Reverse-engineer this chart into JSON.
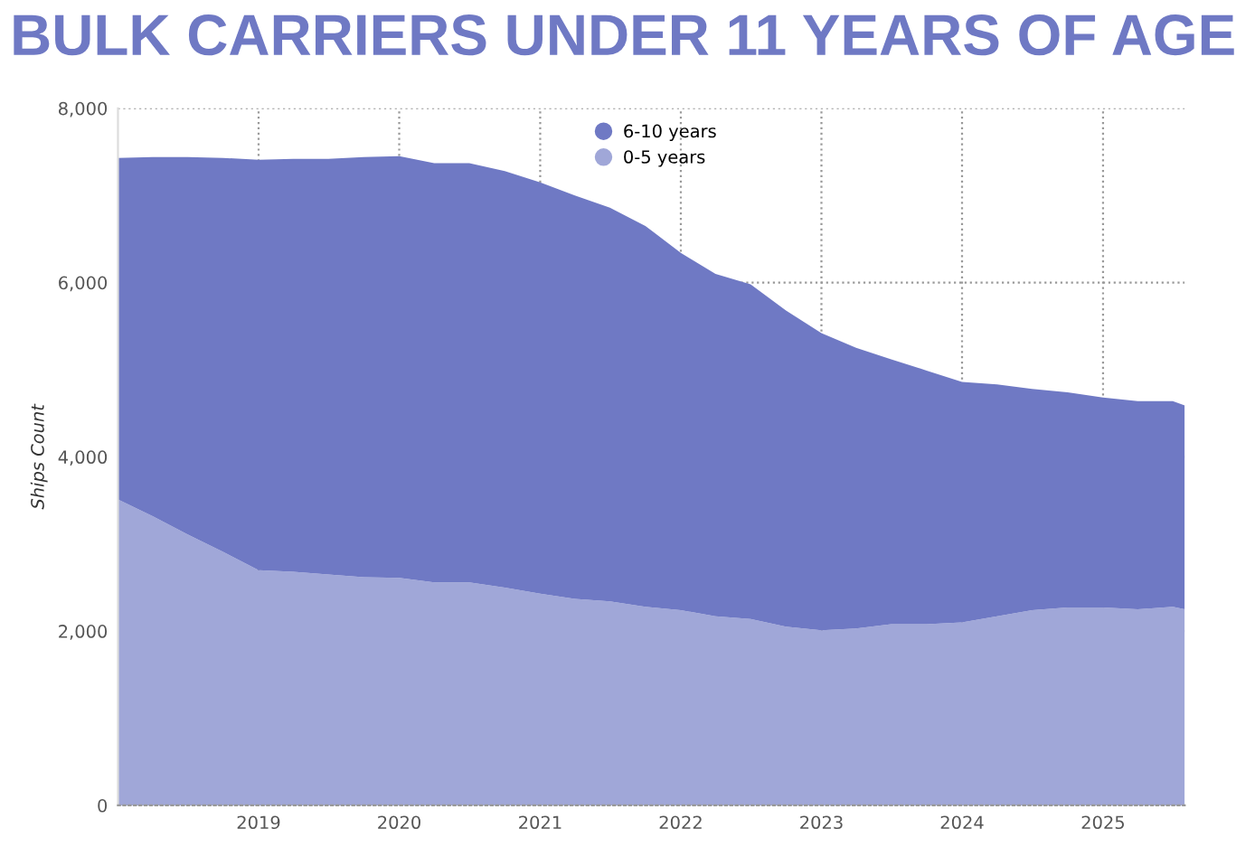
{
  "chart_data": {
    "type": "area",
    "title": "BULK CARRIERS UNDER 11 YEARS OF AGE",
    "ylabel": "Ships Count",
    "stacked": true,
    "x": [
      "2018-01",
      "2018-04",
      "2018-07",
      "2018-10",
      "2019-01",
      "2019-04",
      "2019-07",
      "2019-10",
      "2020-01",
      "2020-04",
      "2020-07",
      "2020-10",
      "2021-01",
      "2021-04",
      "2021-07",
      "2021-10",
      "2022-01",
      "2022-04",
      "2022-07",
      "2022-10",
      "2023-01",
      "2023-04",
      "2023-07",
      "2023-10",
      "2024-01",
      "2024-04",
      "2024-07",
      "2024-10",
      "2025-01",
      "2025-04",
      "2025-07",
      "2025-08"
    ],
    "series": [
      {
        "name": "0-5 years",
        "color": "#a0a7d8",
        "values": [
          3510,
          3320,
          3110,
          2910,
          2700,
          2680,
          2650,
          2620,
          2610,
          2560,
          2560,
          2500,
          2430,
          2370,
          2340,
          2280,
          2240,
          2170,
          2140,
          2050,
          2010,
          2030,
          2080,
          2080,
          2100,
          2170,
          2240,
          2270,
          2270,
          2250,
          2280,
          2250
        ]
      },
      {
        "name": "6-10 years",
        "color": "#6f79c4",
        "values": [
          3920,
          4120,
          4330,
          4520,
          4710,
          4740,
          4770,
          4820,
          4840,
          4810,
          4810,
          4780,
          4720,
          4630,
          4520,
          4370,
          4100,
          3930,
          3840,
          3630,
          3410,
          3220,
          3040,
          2910,
          2760,
          2660,
          2540,
          2470,
          2410,
          2390,
          2360,
          2340
        ]
      }
    ],
    "xlim": [
      "2018-01",
      "2025-08"
    ],
    "xticks": [
      "2019",
      "2020",
      "2021",
      "2022",
      "2023",
      "2024",
      "2025"
    ],
    "ylim": [
      0,
      8000
    ],
    "yticks": [
      0,
      {
        "value": 2000,
        "label": "2,000"
      },
      {
        "value": 4000,
        "label": "4,000"
      },
      {
        "value": 6000,
        "label": "6,000"
      },
      {
        "value": 8000,
        "label": "8,000"
      }
    ],
    "grid": true,
    "legend": "top",
    "line_style": "dotted"
  }
}
